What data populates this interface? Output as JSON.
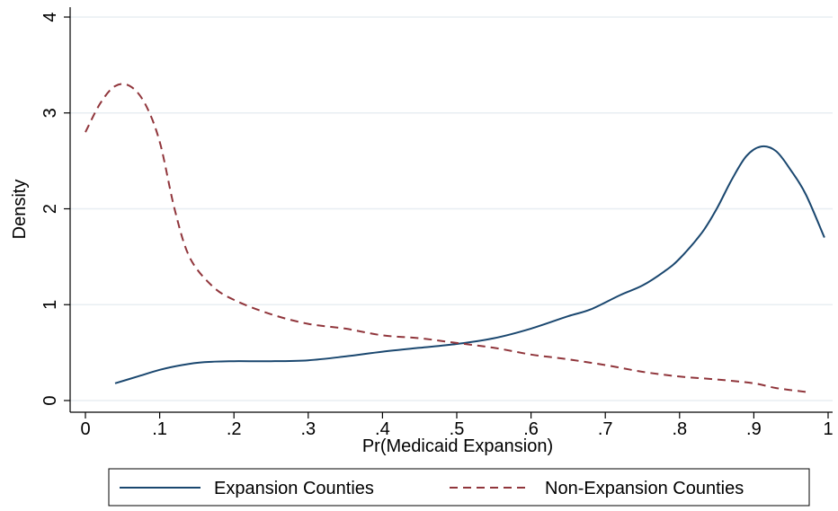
{
  "chart_data": {
    "type": "line",
    "xlabel": "Pr(Medicaid Expansion)",
    "ylabel": "Density",
    "xlim": [
      0,
      1
    ],
    "ylim": [
      0,
      4
    ],
    "x_ticks": [
      0,
      0.1,
      0.2,
      0.3,
      0.4,
      0.5,
      0.6,
      0.7,
      0.8,
      0.9,
      1
    ],
    "x_tick_labels": [
      "0",
      ".1",
      ".2",
      ".3",
      ".4",
      ".5",
      ".6",
      ".7",
      ".8",
      ".9",
      "1"
    ],
    "y_ticks": [
      0,
      1,
      2,
      3,
      4
    ],
    "y_tick_labels": [
      "0",
      "1",
      "2",
      "3",
      "4"
    ],
    "grid": "horizontal",
    "legend_position": "bottom",
    "series": [
      {
        "name": "Expansion Counties",
        "color": "#1a476f",
        "style": "solid",
        "x": [
          0.04,
          0.07,
          0.1,
          0.13,
          0.16,
          0.2,
          0.25,
          0.3,
          0.35,
          0.4,
          0.45,
          0.5,
          0.55,
          0.6,
          0.65,
          0.68,
          0.72,
          0.75,
          0.78,
          0.8,
          0.83,
          0.85,
          0.87,
          0.89,
          0.91,
          0.93,
          0.95,
          0.97,
          0.995
        ],
        "y": [
          0.18,
          0.25,
          0.32,
          0.37,
          0.4,
          0.41,
          0.41,
          0.42,
          0.46,
          0.51,
          0.55,
          0.59,
          0.65,
          0.75,
          0.88,
          0.95,
          1.1,
          1.2,
          1.35,
          1.48,
          1.75,
          2.0,
          2.3,
          2.55,
          2.65,
          2.6,
          2.4,
          2.15,
          1.7
        ]
      },
      {
        "name": "Non-Expansion Counties",
        "color": "#90353b",
        "style": "dashed",
        "x": [
          0.0,
          0.02,
          0.04,
          0.06,
          0.08,
          0.1,
          0.12,
          0.14,
          0.17,
          0.2,
          0.25,
          0.3,
          0.35,
          0.4,
          0.45,
          0.5,
          0.55,
          0.6,
          0.65,
          0.7,
          0.75,
          0.8,
          0.85,
          0.9,
          0.93,
          0.97
        ],
        "y": [
          2.8,
          3.1,
          3.28,
          3.28,
          3.1,
          2.7,
          2.0,
          1.5,
          1.2,
          1.05,
          0.9,
          0.8,
          0.75,
          0.68,
          0.65,
          0.6,
          0.55,
          0.48,
          0.43,
          0.37,
          0.3,
          0.25,
          0.22,
          0.18,
          0.13,
          0.09
        ]
      }
    ]
  }
}
